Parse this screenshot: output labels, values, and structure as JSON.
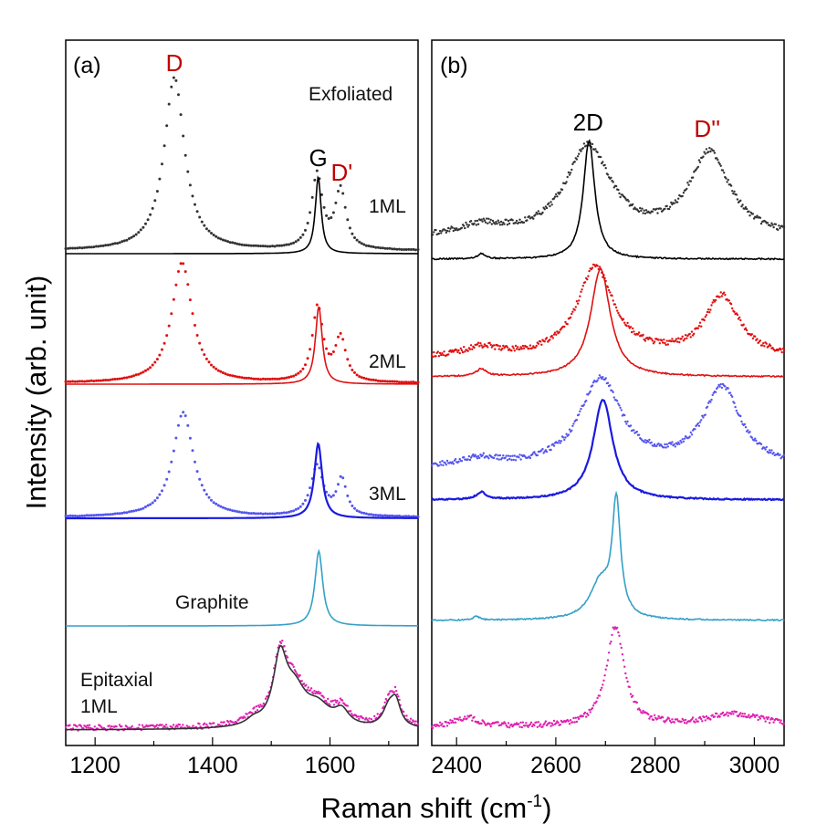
{
  "chart_data": {
    "type": "line",
    "ylabel": "Intensity (arb. unit)",
    "xlabel_main": "Raman shift (cm",
    "xlabel_sup": "-1",
    "xlabel_close": ")",
    "colors": {
      "Exfoliated 1ML": "#333333",
      "2ML": "#e01010",
      "3ML": "#1a1ae0",
      "3ML_dots": "#5555ee",
      "Graphite": "#33a0c8",
      "Epitaxial 1ML": "#e020b0",
      "Epitaxial 1ML fit": "#333333",
      "peak_red": "#c00000",
      "peak_black": "#000000"
    },
    "panels": [
      {
        "id": "a",
        "label": "(a)",
        "x_range": [
          1150,
          1750
        ],
        "x_ticks": [
          1200,
          1400,
          1600
        ],
        "tick_labels": [
          "1200",
          "1400",
          "1600"
        ],
        "series_labels": [
          "Exfoliated",
          "1ML",
          "2ML",
          "3ML",
          "Graphite",
          "Epitaxial",
          "1ML"
        ],
        "peak_labels": [
          {
            "text": "D",
            "x": 1335,
            "color": "red"
          },
          {
            "text": "G",
            "x": 1580,
            "color": "black"
          },
          {
            "text": "D'",
            "x": 1620,
            "color": "red"
          }
        ],
        "spectra": [
          {
            "name": "Exfoliated 1ML",
            "color": "Exfoliated 1ML",
            "baseline": 275,
            "style": "dots",
            "peaks": [
              [
                1335,
                190,
                21
              ],
              [
                1578,
                82,
                11
              ],
              [
                1618,
                65,
                11
              ]
            ]
          },
          {
            "name": "Exfoliated 1ML",
            "color": "peak_black",
            "baseline": 278,
            "style": "line",
            "peaks": [
              [
                1580,
                84,
                6
              ]
            ]
          },
          {
            "name": "2ML",
            "color": "2ML",
            "baseline": 420,
            "style": "dots",
            "peaks": [
              [
                1348,
                132,
                21
              ],
              [
                1579,
                82,
                11
              ],
              [
                1618,
                48,
                11
              ]
            ]
          },
          {
            "name": "2ML",
            "color": "2ML",
            "baseline": 421,
            "style": "line",
            "peaks": [
              [
                1581,
                85,
                7
              ]
            ]
          },
          {
            "name": "3ML",
            "color": "3ML_dots",
            "baseline": 567,
            "style": "dots",
            "peaks": [
              [
                1350,
                115,
                21
              ],
              [
                1578,
                55,
                13
              ],
              [
                1620,
                40,
                10
              ]
            ]
          },
          {
            "name": "3ML",
            "color": "3ML",
            "baseline": 568,
            "style": "line",
            "peaks": [
              [
                1580,
                82,
                8
              ]
            ]
          },
          {
            "name": "Graphite",
            "color": "Graphite",
            "baseline": 686,
            "style": "line",
            "peaks": [
              [
                1581,
                82,
                8
              ]
            ]
          },
          {
            "name": "Epitaxial 1ML",
            "color": "Epitaxial 1ML",
            "baseline": 798,
            "style": "dots",
            "peaks": [
              [
                1515,
                72,
                14
              ],
              [
                1540,
                40,
                24
              ],
              [
                1580,
                22,
                25
              ],
              [
                1620,
                18,
                15
              ],
              [
                1700,
                22,
                12
              ],
              [
                1712,
                28,
                10
              ],
              [
                1470,
                8,
                15
              ]
            ]
          },
          {
            "name": "Epitaxial 1ML fit",
            "color": "Epitaxial 1ML fit",
            "baseline": 800,
            "style": "line",
            "peaks": [
              [
                1515,
                70,
                14
              ],
              [
                1540,
                38,
                24
              ],
              [
                1580,
                20,
                25
              ],
              [
                1620,
                16,
                15
              ],
              [
                1700,
                20,
                12
              ],
              [
                1712,
                26,
                10
              ],
              [
                1470,
                6,
                15
              ]
            ]
          }
        ]
      },
      {
        "id": "b",
        "label": "(b)",
        "x_range": [
          2350,
          3060
        ],
        "x_ticks": [
          2400,
          2600,
          2800,
          3000
        ],
        "tick_labels": [
          "2400",
          "2600",
          "2800",
          "3000"
        ],
        "peak_labels": [
          {
            "text": "2D",
            "x": 2665,
            "color": "black"
          },
          {
            "text": "D''",
            "x": 2905,
            "color": "red"
          }
        ],
        "spectra": [
          {
            "name": "Exfoliated 1ML",
            "color": "Exfoliated 1ML",
            "baseline": 262,
            "style": "dots",
            "peaks": [
              [
                2665,
                100,
                55
              ],
              [
                2910,
                92,
                50
              ],
              [
                2450,
                12,
                60
              ]
            ]
          },
          {
            "name": "Exfoliated 1ML",
            "color": "peak_black",
            "baseline": 284,
            "style": "line",
            "peaks": [
              [
                2667,
                130,
                14
              ],
              [
                2450,
                6,
                8
              ]
            ]
          },
          {
            "name": "2ML",
            "color": "2ML",
            "baseline": 392,
            "style": "dots",
            "peaks": [
              [
                2680,
                98,
                45
              ],
              [
                2935,
                66,
                42
              ],
              [
                2450,
                10,
                40
              ]
            ]
          },
          {
            "name": "2ML",
            "color": "2ML",
            "baseline": 413,
            "style": "line",
            "peaks": [
              [
                2690,
                118,
                24
              ],
              [
                2450,
                8,
                12
              ]
            ]
          },
          {
            "name": "3ML",
            "color": "3ML_dots",
            "baseline": 512,
            "style": "dots",
            "peaks": [
              [
                2690,
                96,
                50
              ],
              [
                2935,
                86,
                45
              ],
              [
                2450,
                8,
                40
              ]
            ]
          },
          {
            "name": "3ML",
            "color": "3ML",
            "baseline": 548,
            "style": "line",
            "peaks": [
              [
                2695,
                110,
                24
              ],
              [
                2450,
                8,
                12
              ]
            ]
          },
          {
            "name": "Graphite",
            "color": "Graphite",
            "baseline": 680,
            "style": "line",
            "peaks": [
              [
                2722,
                124,
                10
              ],
              [
                2690,
                40,
                26
              ],
              [
                2440,
                4,
                8
              ]
            ]
          },
          {
            "name": "Epitaxial 1ML",
            "color": "Epitaxial 1ML",
            "baseline": 797,
            "style": "dots",
            "peaks": [
              [
                2720,
                110,
                22
              ],
              [
                2960,
                14,
                70
              ],
              [
                2420,
                10,
                30
              ]
            ]
          }
        ]
      }
    ]
  }
}
